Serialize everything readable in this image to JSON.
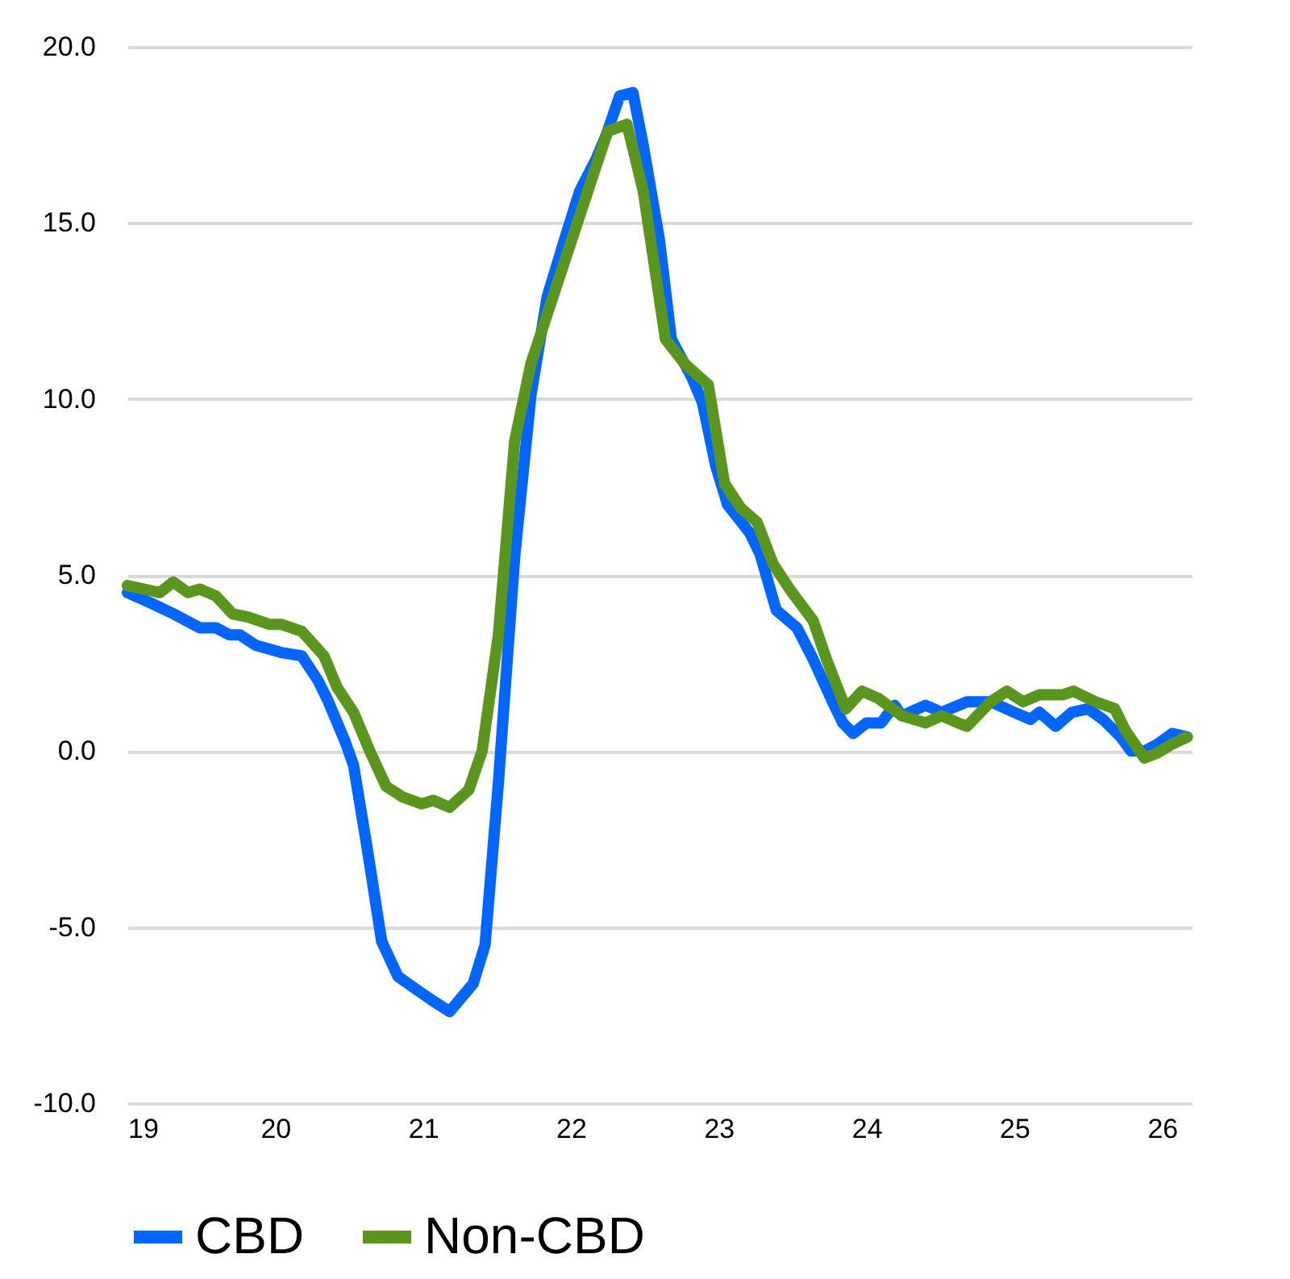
{
  "chart_data": {
    "type": "line",
    "xlim": [
      19,
      26.2
    ],
    "xticks": [
      19,
      20,
      21,
      22,
      23,
      24,
      25,
      26
    ],
    "ylim": [
      -10,
      20
    ],
    "yticks": [
      {
        "value": -10,
        "label": "-10.0"
      },
      {
        "value": -5,
        "label": "-5.0"
      },
      {
        "value": 0,
        "label": "0.0"
      },
      {
        "value": 5,
        "label": "5.0"
      },
      {
        "value": 10,
        "label": "10.0"
      },
      {
        "value": 15,
        "label": "15.0"
      },
      {
        "value": 20,
        "label": "20.0"
      }
    ],
    "grid": "y",
    "legend": "bottom",
    "marker": "none",
    "line_style": "solid",
    "series": [
      {
        "name": "CBD",
        "color": "#0066ff",
        "x": [
          19.0,
          19.16,
          19.31,
          19.49,
          19.6,
          19.69,
          19.76,
          19.87,
          20.04,
          20.18,
          20.29,
          20.36,
          20.47,
          20.53,
          20.62,
          20.72,
          20.83,
          21.0,
          21.07,
          21.18,
          21.34,
          21.42,
          21.51,
          21.62,
          21.73,
          21.84,
          21.97,
          22.06,
          22.17,
          22.24,
          22.33,
          22.42,
          22.49,
          22.6,
          22.68,
          22.82,
          22.89,
          22.98,
          23.06,
          23.21,
          23.28,
          23.39,
          23.53,
          23.64,
          23.77,
          23.84,
          23.91,
          24.0,
          24.1,
          24.19,
          24.24,
          24.4,
          24.51,
          24.68,
          24.84,
          25.0,
          25.11,
          25.17,
          25.28,
          25.39,
          25.5,
          25.6,
          25.72,
          25.79,
          25.88,
          25.97,
          26.07,
          26.17
        ],
        "values": [
          4.5,
          4.2,
          3.9,
          3.5,
          3.5,
          3.3,
          3.3,
          3.0,
          2.8,
          2.7,
          2.0,
          1.4,
          0.3,
          -0.4,
          -2.7,
          -5.4,
          -6.4,
          -6.9,
          -7.1,
          -7.4,
          -6.6,
          -5.5,
          -0.9,
          5.5,
          10.1,
          12.9,
          14.7,
          15.9,
          16.8,
          17.5,
          18.6,
          18.7,
          17.2,
          14.5,
          11.7,
          10.6,
          9.9,
          8.1,
          7.0,
          6.2,
          5.6,
          4.0,
          3.5,
          2.6,
          1.4,
          0.8,
          0.5,
          0.8,
          0.8,
          1.3,
          1.0,
          1.3,
          1.1,
          1.4,
          1.4,
          1.1,
          0.9,
          1.1,
          0.7,
          1.1,
          1.2,
          0.9,
          0.4,
          0.0,
          0.0,
          0.2,
          0.5,
          0.4
        ]
      },
      {
        "name": "Non-CBD",
        "color": "#5a961e",
        "x": [
          19.0,
          19.22,
          19.31,
          19.41,
          19.49,
          19.6,
          19.71,
          19.82,
          19.96,
          20.04,
          20.18,
          20.33,
          20.42,
          20.53,
          20.64,
          20.75,
          20.86,
          20.99,
          21.07,
          21.18,
          21.31,
          21.4,
          21.51,
          21.62,
          21.73,
          21.84,
          21.95,
          22.06,
          22.17,
          22.25,
          22.38,
          22.49,
          22.64,
          22.77,
          22.93,
          23.04,
          23.15,
          23.26,
          23.37,
          23.48,
          23.64,
          23.73,
          23.86,
          23.97,
          24.08,
          24.24,
          24.4,
          24.51,
          24.62,
          24.68,
          24.84,
          24.95,
          25.06,
          25.17,
          25.33,
          25.4,
          25.55,
          25.68,
          25.75,
          25.88,
          25.97,
          26.07,
          26.17
        ],
        "values": [
          4.7,
          4.5,
          4.8,
          4.5,
          4.6,
          4.4,
          3.9,
          3.8,
          3.6,
          3.6,
          3.4,
          2.7,
          1.8,
          1.1,
          0.0,
          -1.0,
          -1.3,
          -1.5,
          -1.4,
          -1.6,
          -1.1,
          0.0,
          3.3,
          8.8,
          11.0,
          12.4,
          13.8,
          15.2,
          16.6,
          17.6,
          17.8,
          15.9,
          11.7,
          11.0,
          10.4,
          7.6,
          6.9,
          6.5,
          5.3,
          4.6,
          3.7,
          2.6,
          1.2,
          1.7,
          1.5,
          1.0,
          0.8,
          1.0,
          0.8,
          0.7,
          1.4,
          1.7,
          1.4,
          1.6,
          1.6,
          1.7,
          1.4,
          1.2,
          0.6,
          -0.2,
          -0.05,
          0.2,
          0.4
        ]
      }
    ]
  }
}
